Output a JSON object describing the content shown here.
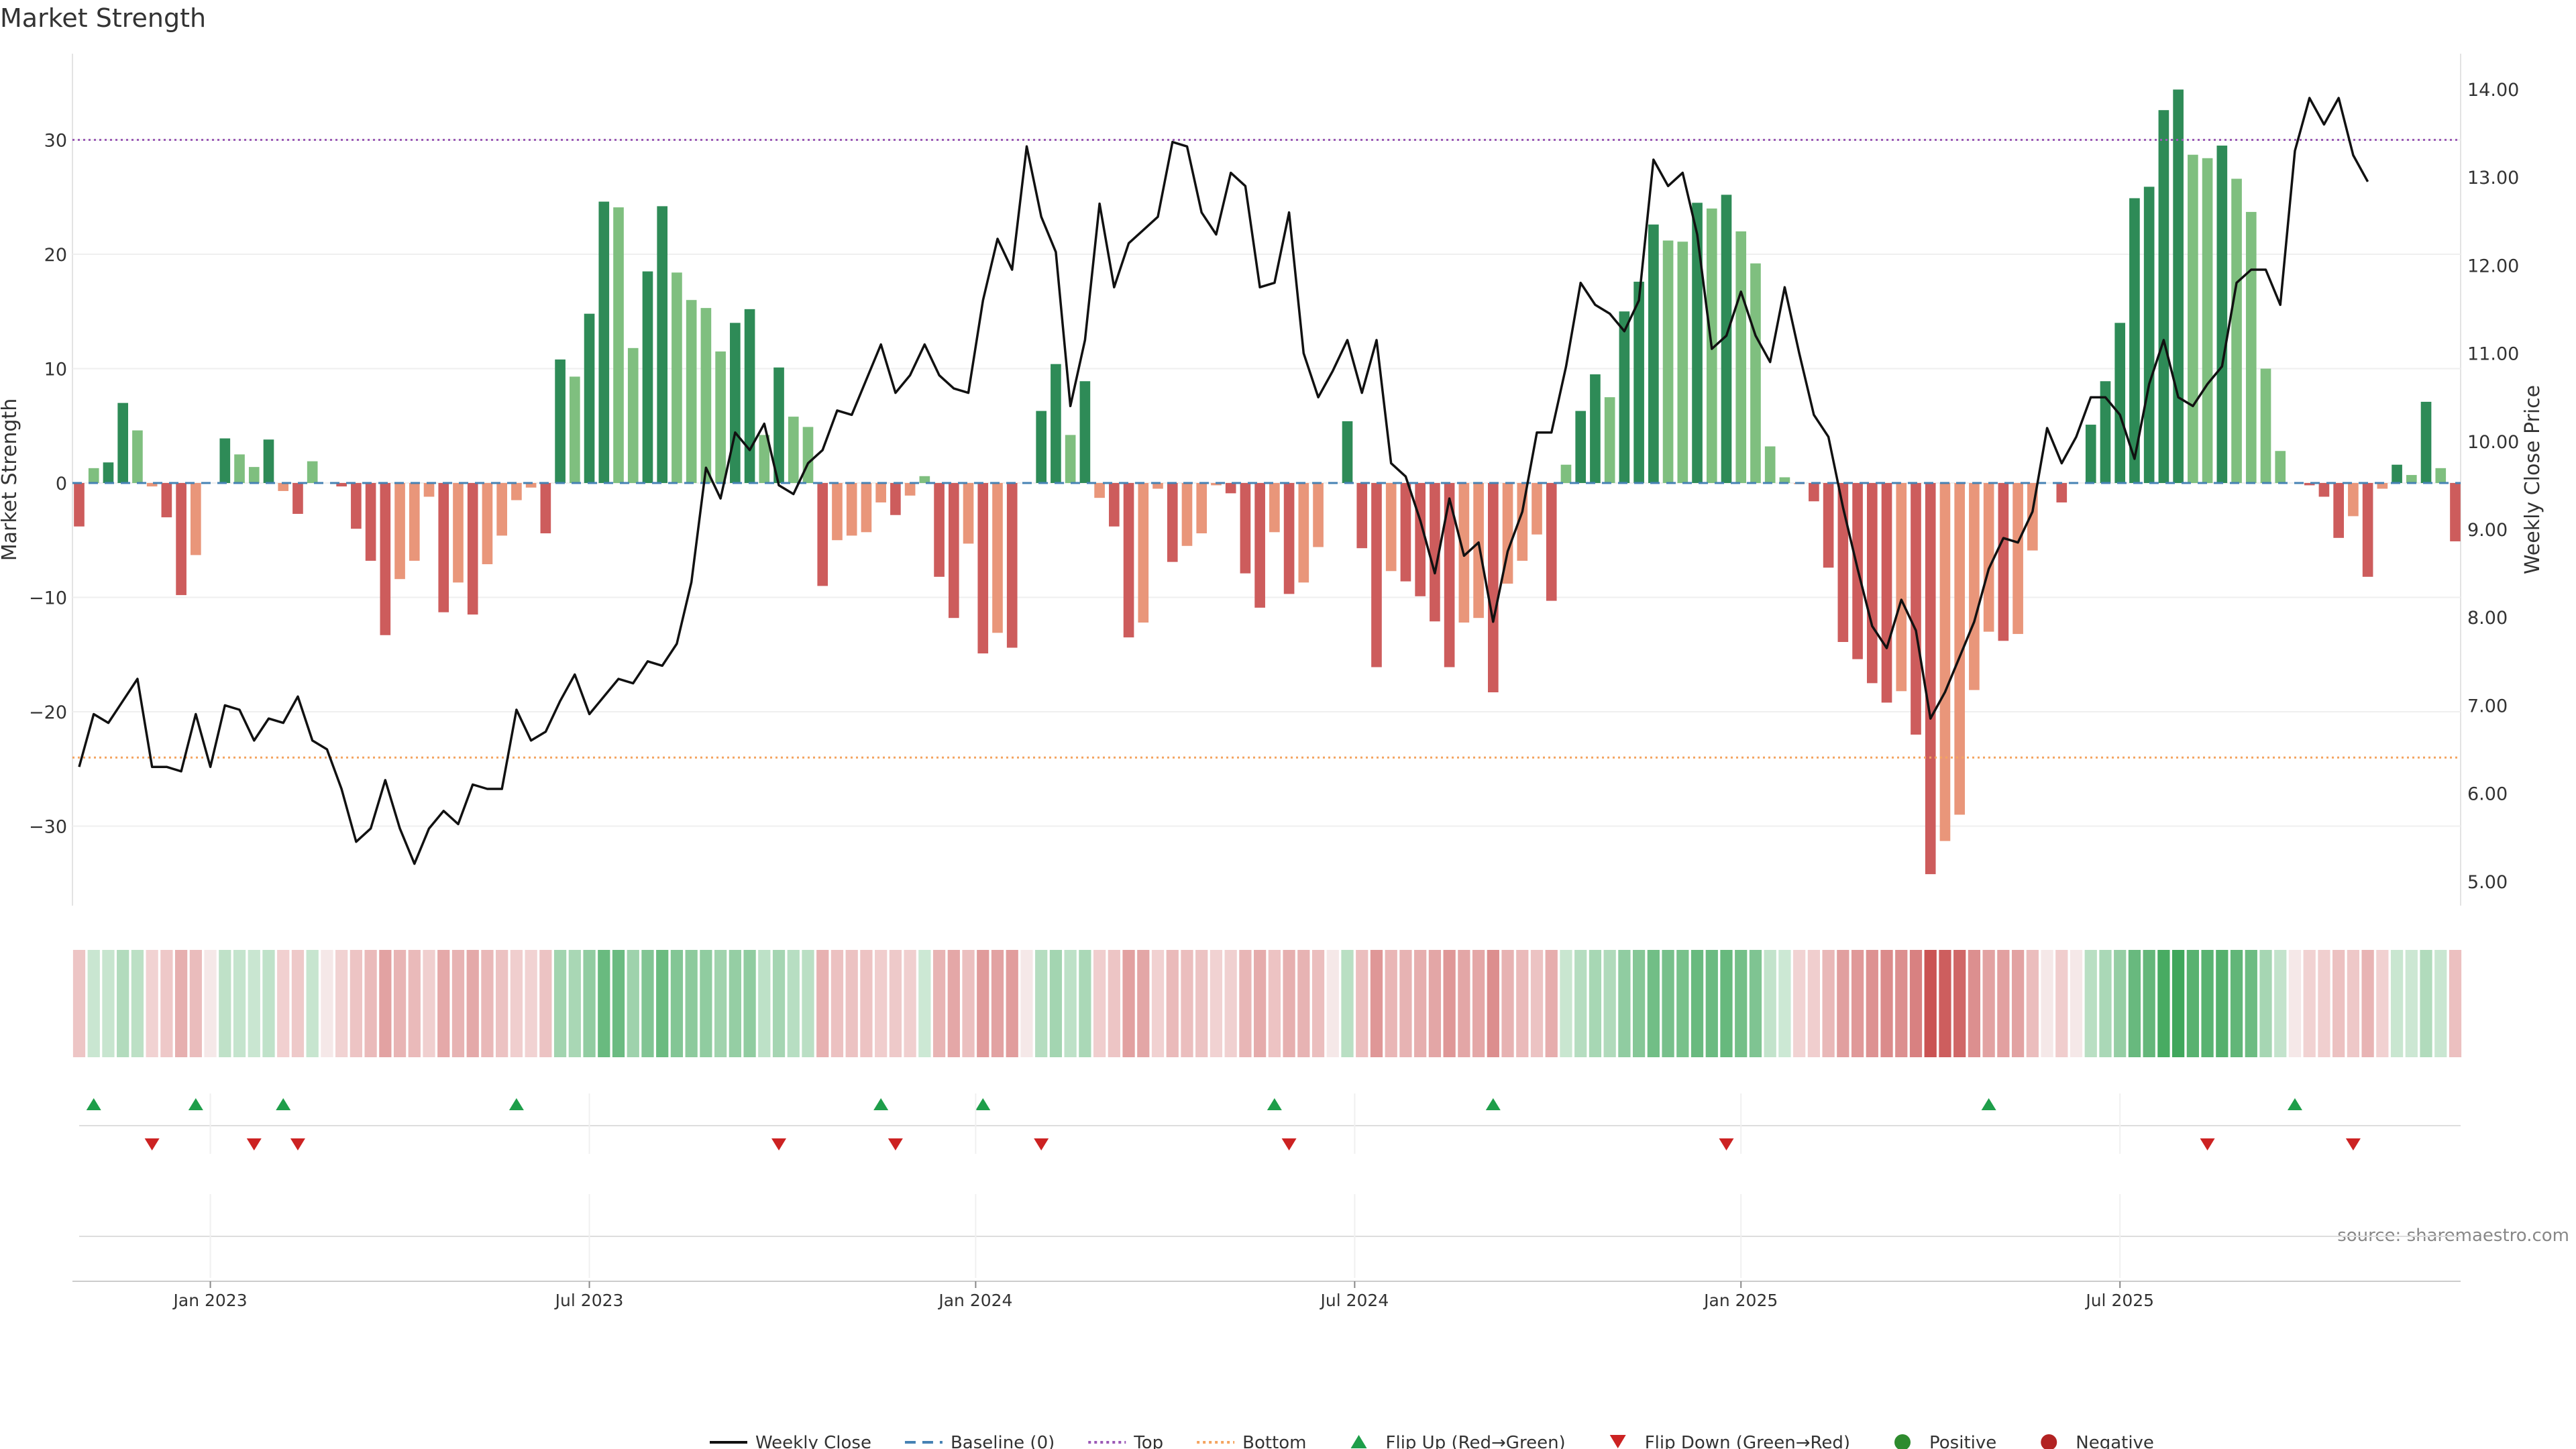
{
  "title": "Market Strength",
  "source": "source: sharemaestro.com",
  "colors": {
    "pos_strong": "#2e8b57",
    "pos_light": "#7fbf7f",
    "neg_strong": "#cd5c5c",
    "neg_light": "#e9967a",
    "close_line": "#111111",
    "baseline": "#4682b4",
    "top": "#9b59b6",
    "bottom": "#f4a460",
    "flip_up": "#1e9e4a",
    "flip_down": "#cc2222",
    "positive": "#2e8b2e",
    "negative": "#b22222"
  },
  "chart_data": {
    "type": "bar",
    "title": "Market Strength",
    "ylabel": "Market Strength",
    "y2label": "Weekly Close Price",
    "ylim": [
      -37,
      38
    ],
    "y2lim": [
      4.7,
      14.4
    ],
    "yticks": [
      "30",
      "20",
      "10",
      "0",
      "−10",
      "−20",
      "−30"
    ],
    "y2ticks": [
      "14.00",
      "13.00",
      "12.00",
      "11.00",
      "10.00",
      "9.00",
      "8.00",
      "7.00",
      "6.00",
      "5.00"
    ],
    "xticks": [
      {
        "label": "Jan 2023",
        "week": 9
      },
      {
        "label": "Jul 2023",
        "week": 35
      },
      {
        "label": "Jan 2024",
        "week": 61.5
      },
      {
        "label": "Jul 2024",
        "week": 87.5
      },
      {
        "label": "Jan 2025",
        "week": 114
      },
      {
        "label": "Jul 2025",
        "week": 140
      }
    ],
    "top_level": 30,
    "bottom_level": -24,
    "strength": [
      -3.8,
      1.3,
      1.8,
      7,
      4.6,
      -0.3,
      -3,
      -9.8,
      -6.3,
      0,
      3.9,
      2.5,
      1.4,
      3.8,
      -0.7,
      -2.7,
      1.9,
      0,
      -0.3,
      -4,
      -6.8,
      -13.3,
      -8.4,
      -6.8,
      -1.2,
      -11.3,
      -8.7,
      -11.5,
      -7.1,
      -4.6,
      -1.5,
      -0.4,
      -4.4,
      10.8,
      9.3,
      14.8,
      24.6,
      24.1,
      11.8,
      18.5,
      24.2,
      18.4,
      16,
      15.3,
      11.5,
      14,
      15.2,
      4.2,
      10.1,
      5.8,
      4.9,
      -9,
      -5,
      -4.6,
      -4.3,
      -1.7,
      -2.8,
      -1.1,
      0.6,
      -8.2,
      -11.8,
      -5.3,
      -14.9,
      -13.1,
      -14.4,
      0,
      6.3,
      10.4,
      4.2,
      8.9,
      -1.3,
      -3.8,
      -13.5,
      -12.2,
      -0.5,
      -6.9,
      -5.5,
      -4.4,
      -0.2,
      -0.9,
      -7.9,
      -10.9,
      -4.3,
      -9.7,
      -8.7,
      -5.6,
      0,
      5.4,
      -5.7,
      -16.1,
      -7.7,
      -8.6,
      -9.9,
      -12.1,
      -16.1,
      -12.2,
      -11.8,
      -18.3,
      -8.8,
      -6.8,
      -4.5,
      -10.3,
      1.6,
      6.3,
      9.5,
      7.5,
      15,
      17.6,
      22.6,
      21.2,
      21.1,
      24.5,
      24,
      25.2,
      22,
      19.2,
      3.2,
      0.5,
      -0.1,
      -1.6,
      -7.4,
      -13.9,
      -15.4,
      -17.5,
      -19.2,
      -18.2,
      -22,
      -34.2,
      -31.3,
      -29,
      -18.1,
      -13,
      -13.8,
      -13.2,
      -5.9,
      0,
      -1.7,
      0,
      5.1,
      8.9,
      14,
      24.9,
      25.9,
      32.6,
      34.4,
      28.7,
      28.4,
      29.5,
      26.6,
      23.7,
      10,
      2.8,
      0,
      -0.2,
      -1.2,
      -4.8,
      -2.9,
      -8.2,
      -0.5,
      1.6,
      0.7,
      7.1,
      1.3,
      -5.1
    ],
    "close": [
      6.3,
      6.9,
      6.8,
      7.05,
      7.3,
      6.3,
      6.3,
      6.25,
      6.9,
      6.3,
      7,
      6.95,
      6.6,
      6.85,
      6.8,
      7.1,
      6.6,
      6.5,
      6.05,
      5.45,
      5.6,
      6.15,
      5.6,
      5.2,
      5.6,
      5.8,
      5.65,
      6.1,
      6.05,
      6.05,
      6.95,
      6.6,
      6.7,
      7.05,
      7.35,
      6.9,
      7.1,
      7.3,
      7.25,
      7.5,
      7.45,
      7.7,
      8.4,
      9.7,
      9.35,
      10.1,
      9.9,
      10.2,
      9.5,
      9.4,
      9.75,
      9.9,
      10.35,
      10.3,
      10.7,
      11.1,
      10.55,
      10.75,
      11.1,
      10.75,
      10.6,
      10.55,
      11.6,
      12.3,
      11.95,
      13.35,
      12.55,
      12.15,
      10.4,
      11.15,
      12.7,
      11.75,
      12.25,
      12.4,
      12.55,
      13.4,
      13.35,
      12.6,
      12.35,
      13.05,
      12.9,
      11.75,
      11.8,
      12.6,
      11,
      10.5,
      10.8,
      11.15,
      10.55,
      11.15,
      9.75,
      9.6,
      9.1,
      8.5,
      9.35,
      8.7,
      8.85,
      7.95,
      8.75,
      9.2,
      10.1,
      10.1,
      10.85,
      11.8,
      11.55,
      11.45,
      11.25,
      11.6,
      13.2,
      12.9,
      13.05,
      12.35,
      11.05,
      11.2,
      11.7,
      11.2,
      10.9,
      11.75,
      11,
      10.3,
      10.05,
      9.25,
      8.55,
      7.9,
      7.65,
      8.2,
      7.85,
      6.85,
      7.15,
      7.55,
      7.95,
      8.55,
      8.9,
      8.85,
      9.2,
      10.15,
      9.75,
      10.05,
      10.5,
      10.5,
      10.3,
      9.8,
      10.65,
      11.15,
      10.5,
      10.4,
      10.65,
      10.85,
      11.8,
      11.95,
      11.95,
      11.55,
      13.3,
      13.9,
      13.6,
      13.9,
      13.25,
      12.95
    ],
    "flip_up_weeks": [
      1,
      8,
      14,
      30,
      55,
      62,
      82,
      97,
      131,
      152
    ],
    "flip_down_weeks": [
      5,
      12,
      15,
      48,
      56,
      66,
      83,
      113,
      146,
      156
    ]
  },
  "legend": [
    {
      "key": "close_line",
      "label": "Weekly Close"
    },
    {
      "key": "baseline",
      "label": "Baseline (0)"
    },
    {
      "key": "top",
      "label": "Top"
    },
    {
      "key": "bottom",
      "label": "Bottom"
    },
    {
      "key": "flip_up",
      "label": "Flip Up (Red→Green)"
    },
    {
      "key": "flip_down",
      "label": "Flip Down (Green→Red)"
    },
    {
      "key": "positive",
      "label": "Positive"
    },
    {
      "key": "negative",
      "label": "Negative"
    }
  ]
}
